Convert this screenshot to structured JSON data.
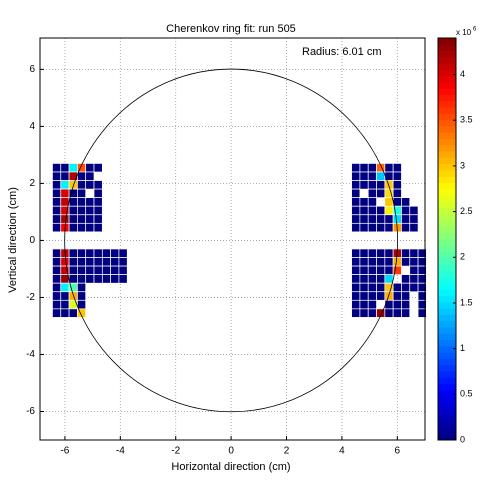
{
  "chart_data": {
    "type": "heatmap",
    "title": "Cherenkov ring fit: run 505",
    "annotation": "Radius: 6.01 cm",
    "xlabel": "Horizontal direction (cm)",
    "ylabel": "Vertical direction (cm)",
    "xlim": [
      -6.9,
      7
    ],
    "ylim": [
      -7,
      7.1
    ],
    "xticks": [
      -6,
      -4,
      -2,
      0,
      2,
      4,
      6
    ],
    "yticks": [
      -6,
      -4,
      -2,
      0,
      2,
      4,
      6
    ],
    "grid": true,
    "x": [
      -6.3,
      -6.0,
      -5.7,
      -5.4,
      -5.1,
      -4.8,
      -4.5,
      -4.2,
      -3.9,
      4.5,
      4.8,
      5.1,
      5.4,
      5.7,
      6.0,
      6.3,
      6.6,
      6.9
    ],
    "y": [
      2.55,
      2.25,
      1.95,
      1.65,
      1.35,
      1.05,
      0.75,
      0.45,
      -0.45,
      -0.75,
      -1.05,
      -1.35,
      -1.65,
      -1.95,
      -2.25,
      -2.55
    ],
    "z": [
      [
        0,
        0,
        1.6,
        3.5,
        0,
        0,
        null,
        null,
        null,
        0,
        0,
        0,
        3.4,
        0,
        0,
        null,
        null,
        null
      ],
      [
        0,
        0,
        4.2,
        0,
        0,
        null,
        null,
        null,
        null,
        0,
        0,
        0,
        1.4,
        0,
        0,
        null,
        null,
        null
      ],
      [
        0,
        1.6,
        3.0,
        0,
        0,
        0,
        null,
        null,
        null,
        0,
        0,
        0,
        0,
        3.0,
        0,
        null,
        null,
        null
      ],
      [
        0,
        4.0,
        0,
        0,
        null,
        0,
        null,
        null,
        null,
        0,
        null,
        0,
        0,
        2.9,
        0,
        null,
        null,
        null
      ],
      [
        0,
        4.1,
        0,
        0,
        0,
        0,
        null,
        null,
        null,
        0,
        0,
        0,
        null,
        3.0,
        0,
        0,
        null,
        null
      ],
      [
        0,
        4.0,
        0,
        0,
        0,
        0,
        null,
        null,
        null,
        0,
        0,
        0,
        0,
        2.8,
        1.8,
        0,
        0,
        null
      ],
      [
        0,
        4.2,
        0,
        0,
        0,
        0,
        null,
        null,
        null,
        0,
        0,
        0,
        0,
        0,
        1.5,
        0,
        0,
        null
      ],
      [
        0,
        3.9,
        0,
        0,
        0,
        0,
        null,
        null,
        null,
        0,
        0,
        0,
        0,
        0,
        3.2,
        0,
        0,
        null
      ],
      [
        0,
        4.1,
        0,
        0,
        0,
        0,
        0,
        0,
        0,
        0,
        0,
        0,
        0,
        0,
        4.2,
        0,
        0,
        0
      ],
      [
        0,
        4.0,
        0,
        0,
        0,
        0,
        0,
        0,
        0,
        0,
        0,
        0,
        0,
        0,
        3.1,
        0,
        0,
        0
      ],
      [
        0,
        4.1,
        0,
        0,
        0,
        0,
        0,
        0,
        0,
        0,
        0,
        0,
        0,
        0,
        3.6,
        null,
        0,
        0
      ],
      [
        0,
        4.3,
        0,
        0,
        0,
        0,
        0,
        0,
        0,
        0,
        0,
        0,
        0,
        1.5,
        null,
        0,
        0,
        0
      ],
      [
        0,
        1.6,
        2.0,
        0,
        null,
        null,
        null,
        null,
        null,
        0,
        0,
        0,
        0,
        3.0,
        0,
        0,
        0,
        0
      ],
      [
        0,
        0,
        3.1,
        0,
        null,
        null,
        null,
        null,
        null,
        0,
        0,
        0,
        0,
        3.1,
        0,
        0,
        null,
        0
      ],
      [
        0,
        0,
        2.6,
        0,
        null,
        null,
        null,
        null,
        null,
        0,
        0,
        0,
        null,
        0,
        0,
        0,
        null,
        0
      ],
      [
        0,
        0,
        0,
        3.0,
        null,
        null,
        null,
        null,
        null,
        0,
        0,
        0,
        4.3,
        0,
        0,
        0,
        null,
        0
      ]
    ],
    "circle": {
      "center": [
        0,
        0
      ],
      "radius": 6.01
    },
    "clim": [
      0,
      4.4
    ],
    "colorbar_ticks": [
      0,
      0.5,
      1,
      1.5,
      2,
      2.5,
      3,
      3.5,
      4
    ],
    "colorbar_label": "x 10",
    "colorbar_exponent": "6"
  }
}
